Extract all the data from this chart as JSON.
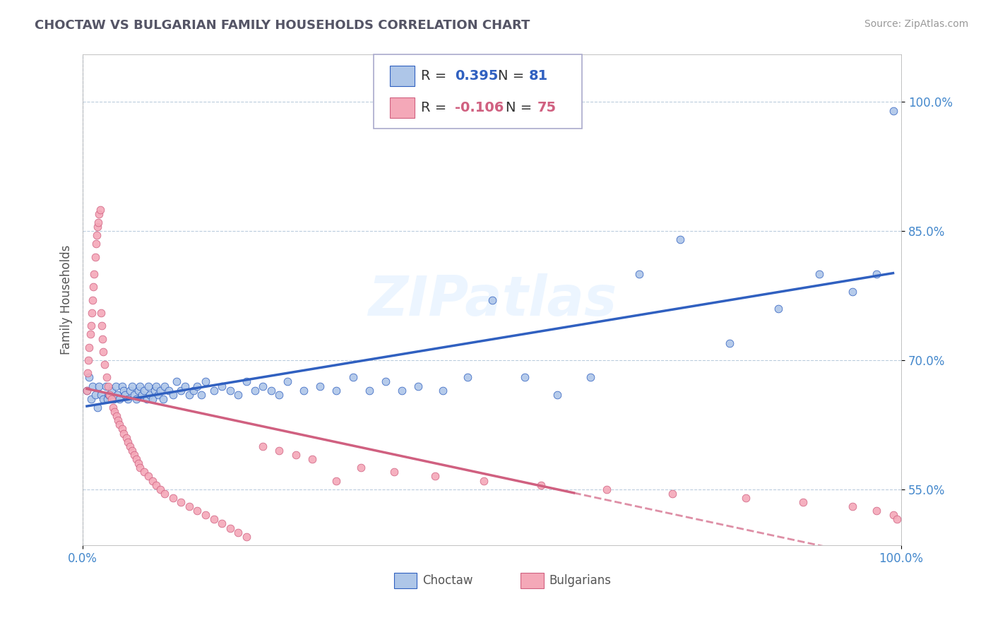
{
  "title": "CHOCTAW VS BULGARIAN FAMILY HOUSEHOLDS CORRELATION CHART",
  "source_text": "Source: ZipAtlas.com",
  "ylabel": "Family Households",
  "choctaw_color": "#aec6e8",
  "bulgarian_color": "#f4a8b8",
  "choctaw_line_color": "#3060c0",
  "bulgarian_line_color": "#d06080",
  "watermark": "ZIPatlas",
  "x_min": 0.0,
  "x_max": 1.0,
  "y_min": 0.485,
  "y_max": 1.055,
  "yticks": [
    0.55,
    0.7,
    0.85,
    1.0
  ],
  "ytick_labels": [
    "55.0%",
    "70.0%",
    "85.0%",
    "100.0%"
  ],
  "xticks": [
    0.0,
    1.0
  ],
  "xtick_labels": [
    "0.0%",
    "100.0%"
  ],
  "choctaw_x": [
    0.005,
    0.008,
    0.01,
    0.012,
    0.015,
    0.018,
    0.02,
    0.022,
    0.025,
    0.028,
    0.03,
    0.032,
    0.035,
    0.038,
    0.04,
    0.042,
    0.045,
    0.048,
    0.05,
    0.052,
    0.055,
    0.058,
    0.06,
    0.063,
    0.065,
    0.068,
    0.07,
    0.072,
    0.075,
    0.078,
    0.08,
    0.082,
    0.085,
    0.088,
    0.09,
    0.092,
    0.095,
    0.098,
    0.1,
    0.105,
    0.11,
    0.115,
    0.12,
    0.125,
    0.13,
    0.135,
    0.14,
    0.145,
    0.15,
    0.16,
    0.17,
    0.18,
    0.19,
    0.2,
    0.21,
    0.22,
    0.23,
    0.24,
    0.25,
    0.27,
    0.29,
    0.31,
    0.33,
    0.35,
    0.37,
    0.39,
    0.41,
    0.44,
    0.47,
    0.5,
    0.54,
    0.58,
    0.62,
    0.68,
    0.73,
    0.79,
    0.85,
    0.9,
    0.94,
    0.97,
    0.99
  ],
  "choctaw_y": [
    0.665,
    0.68,
    0.655,
    0.67,
    0.66,
    0.645,
    0.67,
    0.66,
    0.655,
    0.67,
    0.655,
    0.66,
    0.665,
    0.655,
    0.67,
    0.66,
    0.655,
    0.67,
    0.665,
    0.66,
    0.655,
    0.665,
    0.67,
    0.66,
    0.655,
    0.665,
    0.67,
    0.66,
    0.665,
    0.655,
    0.67,
    0.66,
    0.655,
    0.665,
    0.67,
    0.66,
    0.665,
    0.655,
    0.67,
    0.665,
    0.66,
    0.675,
    0.665,
    0.67,
    0.66,
    0.665,
    0.67,
    0.66,
    0.675,
    0.665,
    0.67,
    0.665,
    0.66,
    0.675,
    0.665,
    0.67,
    0.665,
    0.66,
    0.675,
    0.665,
    0.67,
    0.665,
    0.68,
    0.665,
    0.675,
    0.665,
    0.67,
    0.665,
    0.68,
    0.77,
    0.68,
    0.66,
    0.68,
    0.8,
    0.84,
    0.72,
    0.76,
    0.8,
    0.78,
    0.8,
    0.99
  ],
  "bulgarian_x": [
    0.005,
    0.006,
    0.007,
    0.008,
    0.009,
    0.01,
    0.011,
    0.012,
    0.013,
    0.014,
    0.015,
    0.016,
    0.017,
    0.018,
    0.019,
    0.02,
    0.021,
    0.022,
    0.023,
    0.024,
    0.025,
    0.027,
    0.029,
    0.031,
    0.033,
    0.035,
    0.037,
    0.039,
    0.041,
    0.043,
    0.045,
    0.048,
    0.05,
    0.053,
    0.055,
    0.058,
    0.06,
    0.063,
    0.065,
    0.068,
    0.07,
    0.075,
    0.08,
    0.085,
    0.09,
    0.095,
    0.1,
    0.11,
    0.12,
    0.13,
    0.14,
    0.15,
    0.16,
    0.17,
    0.18,
    0.19,
    0.2,
    0.22,
    0.24,
    0.26,
    0.28,
    0.31,
    0.34,
    0.38,
    0.43,
    0.49,
    0.56,
    0.64,
    0.72,
    0.81,
    0.88,
    0.94,
    0.97,
    0.99,
    0.995
  ],
  "bulgarian_y": [
    0.665,
    0.685,
    0.7,
    0.715,
    0.73,
    0.74,
    0.755,
    0.77,
    0.785,
    0.8,
    0.82,
    0.835,
    0.845,
    0.855,
    0.86,
    0.87,
    0.875,
    0.755,
    0.74,
    0.725,
    0.71,
    0.695,
    0.68,
    0.67,
    0.66,
    0.655,
    0.645,
    0.64,
    0.635,
    0.63,
    0.625,
    0.62,
    0.615,
    0.61,
    0.605,
    0.6,
    0.595,
    0.59,
    0.585,
    0.58,
    0.575,
    0.57,
    0.565,
    0.56,
    0.555,
    0.55,
    0.545,
    0.54,
    0.535,
    0.53,
    0.525,
    0.52,
    0.515,
    0.51,
    0.505,
    0.5,
    0.495,
    0.6,
    0.595,
    0.59,
    0.585,
    0.56,
    0.575,
    0.57,
    0.565,
    0.56,
    0.555,
    0.55,
    0.545,
    0.54,
    0.535,
    0.53,
    0.525,
    0.52,
    0.515
  ]
}
